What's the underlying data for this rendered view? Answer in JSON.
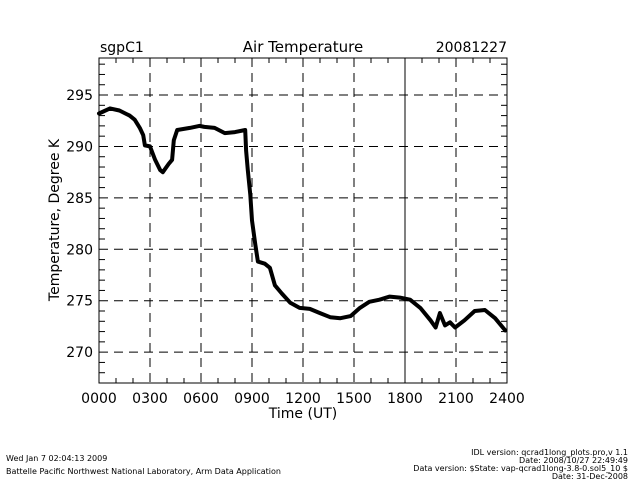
{
  "header": {
    "site": "sgpC1",
    "date": "20081227"
  },
  "chart_data": {
    "type": "line",
    "title": "Air Temperature",
    "xlabel": "Time (UT)",
    "ylabel": "Temperature, Degree K",
    "xlim": [
      0,
      24
    ],
    "ylim": [
      267,
      298.6
    ],
    "x_ticks": [
      0,
      3,
      6,
      9,
      12,
      15,
      18,
      21,
      24
    ],
    "x_tick_labels": [
      "0000",
      "0300",
      "0600",
      "0900",
      "1200",
      "1500",
      "1800",
      "2100",
      "2400"
    ],
    "y_ticks": [
      270,
      275,
      280,
      285,
      290,
      295
    ],
    "y_tick_labels": [
      "270",
      "275",
      "280",
      "285",
      "290",
      "295"
    ],
    "grid": true,
    "series": [
      {
        "name": "Air Temperature",
        "color": "#000000",
        "x": [
          0,
          0.65,
          1.2,
          1.8,
          2.1,
          2.4,
          2.6,
          2.7,
          3.0,
          3.3,
          3.6,
          3.75,
          4.1,
          4.3,
          4.4,
          4.6,
          5.35,
          5.9,
          6.2,
          6.8,
          7.4,
          8.0,
          8.6,
          8.65,
          8.75,
          8.9,
          9.0,
          9.2,
          9.35,
          9.75,
          10.05,
          10.35,
          10.75,
          11.25,
          11.8,
          12.4,
          13.0,
          13.6,
          14.2,
          14.8,
          15.35,
          15.9,
          16.5,
          17.1,
          17.7,
          18.3,
          18.9,
          19.5,
          19.8,
          20.05,
          20.35,
          20.65,
          20.95,
          21.5,
          22.1,
          22.7,
          23.3,
          23.9
        ],
        "y": [
          293.2,
          293.7,
          293.5,
          293.0,
          292.6,
          291.8,
          291.1,
          290.1,
          290.0,
          288.7,
          287.7,
          287.5,
          288.3,
          288.7,
          290.6,
          291.6,
          291.8,
          292.0,
          291.9,
          291.8,
          291.3,
          291.4,
          291.6,
          289.6,
          287.7,
          285.3,
          282.8,
          280.4,
          278.8,
          278.6,
          278.2,
          276.5,
          275.7,
          274.8,
          274.3,
          274.2,
          273.8,
          273.4,
          273.3,
          273.5,
          274.3,
          274.9,
          275.1,
          275.4,
          275.3,
          275.1,
          274.3,
          273.1,
          272.4,
          273.8,
          272.6,
          272.9,
          272.4,
          273.1,
          274.0,
          274.1,
          273.3,
          272.1
        ]
      }
    ]
  },
  "footer": {
    "timestamp": "Wed Jan  7 02:04:13 2009",
    "organization": "Battelle Pacific Northwest National Laboratory, Arm Data Application",
    "idl_version": "IDL version: qcrad1long_plots.pro,v 1.1",
    "idl_date": "Date: 2008/10/27 22:49:49",
    "data_version": "Data version: $State: vap-qcrad1long-3.8-0.sol5_10 $",
    "data_date": "Date: 31-Dec-2008"
  }
}
